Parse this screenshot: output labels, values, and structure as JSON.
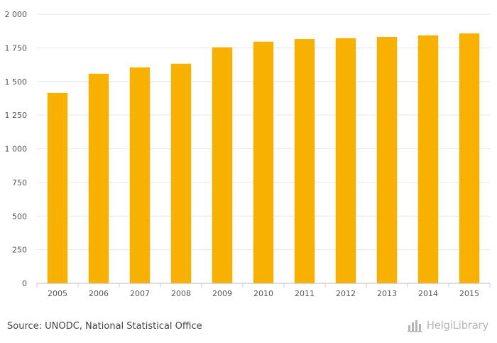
{
  "chart_data": {
    "type": "bar",
    "categories": [
      "2005",
      "2006",
      "2007",
      "2008",
      "2009",
      "2010",
      "2011",
      "2012",
      "2013",
      "2014",
      "2015"
    ],
    "values": [
      1415,
      1558,
      1605,
      1632,
      1754,
      1796,
      1815,
      1822,
      1831,
      1843,
      1857
    ],
    "title": "",
    "xlabel": "",
    "ylabel": "",
    "ylim": [
      0,
      2000
    ],
    "yticks": [
      0,
      250,
      500,
      750,
      1000,
      1250,
      1500,
      1750,
      2000
    ],
    "ytick_labels": [
      "0",
      "250",
      "500",
      "750",
      "1 000",
      "1 250",
      "1 500",
      "1 750",
      "2 000"
    ],
    "grid": true,
    "bar_color": "#F8B100"
  },
  "footer": {
    "source": "Source: UNODC, National Statistical Office",
    "logo_text": "HelgiLibrary",
    "logo_icon": "bar-chart-logo-icon"
  }
}
